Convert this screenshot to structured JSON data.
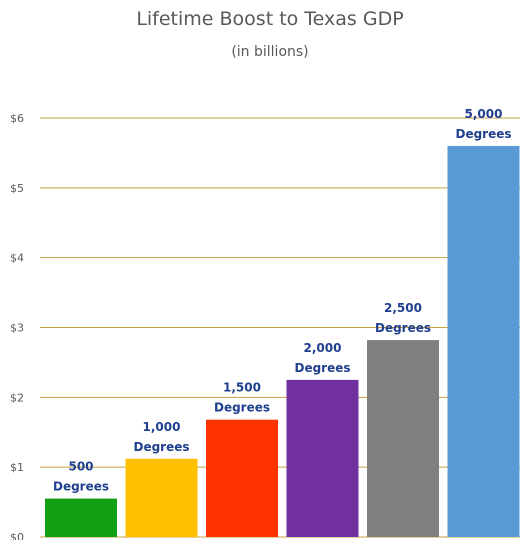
{
  "chart_data": {
    "type": "bar",
    "title": "Lifetime Boost to Texas GDP",
    "subtitle": "(in billions)",
    "xlabel": "",
    "ylabel": "",
    "ylim": [
      0,
      6
    ],
    "yticks": [
      "$0",
      "$1",
      "$2",
      "$3",
      "$4",
      "$5",
      "$6"
    ],
    "grid": true,
    "categories": [
      "500",
      "1,000",
      "1,500",
      "2,000",
      "2,500",
      "5,000"
    ],
    "values": [
      0.55,
      1.12,
      1.68,
      2.25,
      2.82,
      5.6
    ],
    "data_labels": [
      [
        "500",
        "Degrees"
      ],
      [
        "1,000",
        "Degrees"
      ],
      [
        "1,500",
        "Degrees"
      ],
      [
        "2,000",
        "Degrees"
      ],
      [
        "2,500",
        "Degrees"
      ],
      [
        "5,000",
        "Degrees"
      ]
    ],
    "colors": [
      "#12a012",
      "#ffc000",
      "#ff3300",
      "#7030a0",
      "#7f7f7f",
      "#5b9bd5"
    ],
    "gridline_color": "#c8a040",
    "label_color": "#1f3f8f"
  }
}
